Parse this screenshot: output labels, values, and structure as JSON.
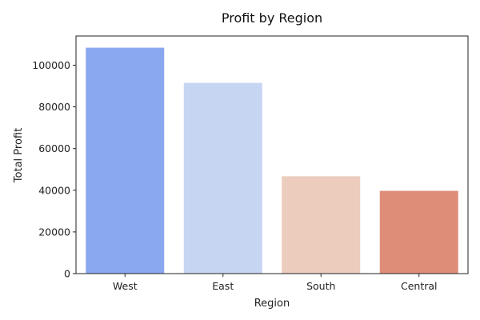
{
  "chart_data": {
    "type": "bar",
    "title": "Profit by Region",
    "xlabel": "Region",
    "ylabel": "Total Profit",
    "categories": [
      "West",
      "East",
      "South",
      "Central"
    ],
    "values": [
      108400,
      91500,
      46700,
      39700
    ],
    "colors": [
      "#8aa8ef",
      "#c6d5f1",
      "#ebccbd",
      "#de8d78"
    ],
    "ylim": [
      0,
      114000
    ],
    "yticks": [
      0,
      20000,
      40000,
      60000,
      80000,
      100000
    ],
    "ytick_labels": [
      "0",
      "20000",
      "40000",
      "60000",
      "80000",
      "100000"
    ],
    "grid": false,
    "legend": "none"
  }
}
